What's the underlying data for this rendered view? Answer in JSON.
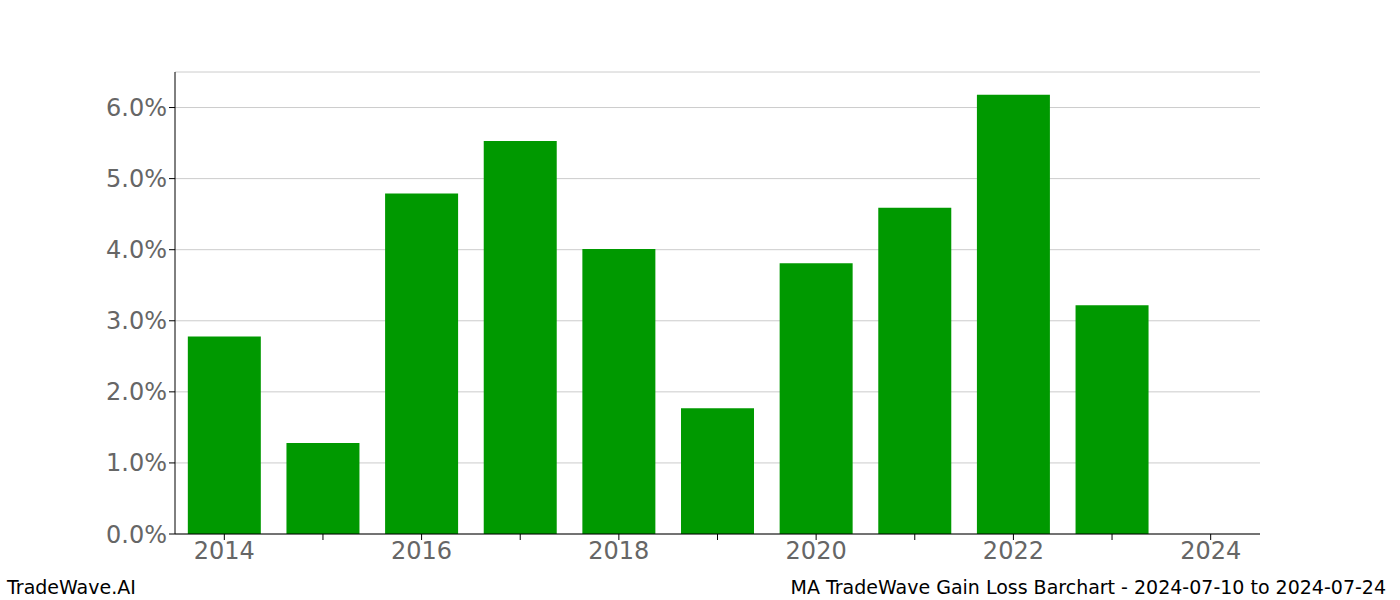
{
  "chart_data": {
    "type": "bar",
    "categories": [
      "2014",
      null,
      "2016",
      null,
      "2018",
      null,
      "2020",
      null,
      "2022",
      null,
      "2024"
    ],
    "values": [
      2.78,
      1.28,
      4.79,
      5.53,
      4.01,
      1.77,
      3.81,
      4.59,
      6.18,
      3.22,
      null
    ],
    "color": "#009900",
    "ylim": [
      0,
      6.5
    ],
    "yticks": [
      {
        "value": 0,
        "label": "0.0%"
      },
      {
        "value": 1,
        "label": "1.0%"
      },
      {
        "value": 2,
        "label": "2.0%"
      },
      {
        "value": 3,
        "label": "3.0%"
      },
      {
        "value": 4,
        "label": "4.0%"
      },
      {
        "value": 5,
        "label": "5.0%"
      },
      {
        "value": 6,
        "label": "6.0%"
      }
    ],
    "grid": true,
    "footer": [
      "TradeWave.AI",
      "MA TradeWave Gain Loss Barchart - 2024-07-10 to 2024-07-24"
    ]
  }
}
